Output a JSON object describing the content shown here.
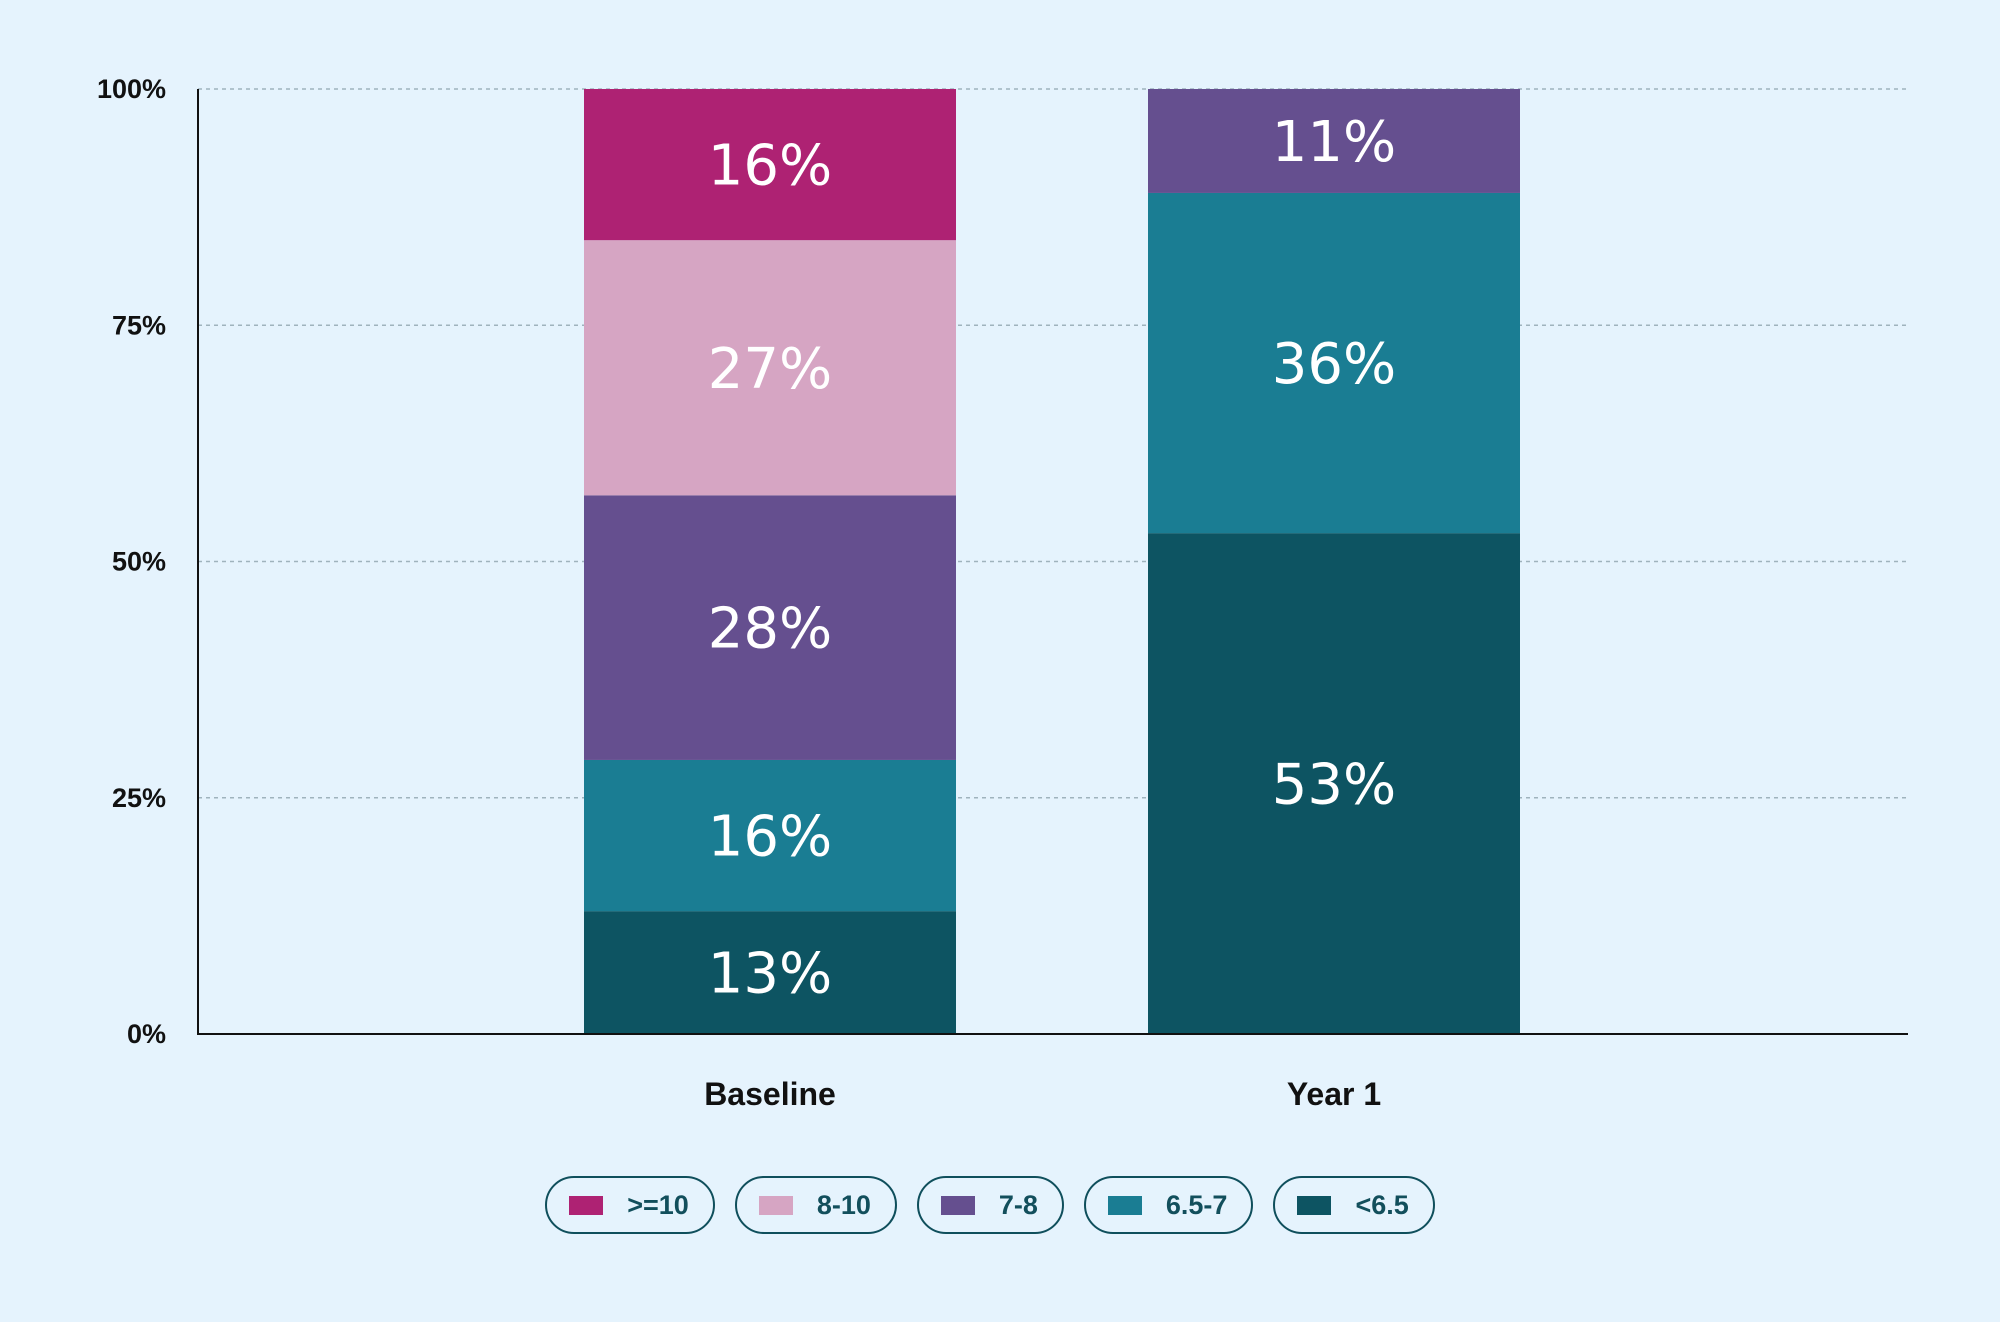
{
  "chart_data": {
    "type": "bar",
    "stacked": true,
    "categories": [
      "Baseline",
      "Year 1"
    ],
    "series": [
      {
        "name": "<6.5",
        "color": "#0d5462",
        "values": [
          13,
          53
        ],
        "labels": [
          "13%",
          "53%"
        ]
      },
      {
        "name": "6.5-7",
        "color": "#1a7d93",
        "values": [
          16,
          36
        ],
        "labels": [
          "16%",
          "36%"
        ]
      },
      {
        "name": "7-8",
        "color": "#654f8f",
        "values": [
          28,
          11
        ],
        "labels": [
          "28%",
          "11%"
        ]
      },
      {
        "name": "8-10",
        "color": "#d6a5c3",
        "values": [
          27,
          0
        ],
        "labels": [
          "27%",
          ""
        ]
      },
      {
        "name": ">=10",
        "color": "#ae2273",
        "values": [
          16,
          0
        ],
        "labels": [
          "16%",
          ""
        ]
      }
    ],
    "ylim": [
      0,
      100
    ],
    "yticks": [
      "0%",
      "25%",
      "50%",
      "75%",
      "100%"
    ],
    "grid": true,
    "legend_position": "bottom",
    "legend_order": [
      ">=10",
      "8-10",
      "7-8",
      "6.5-7",
      "<6.5"
    ],
    "title": "",
    "xlabel": "",
    "ylabel": ""
  }
}
